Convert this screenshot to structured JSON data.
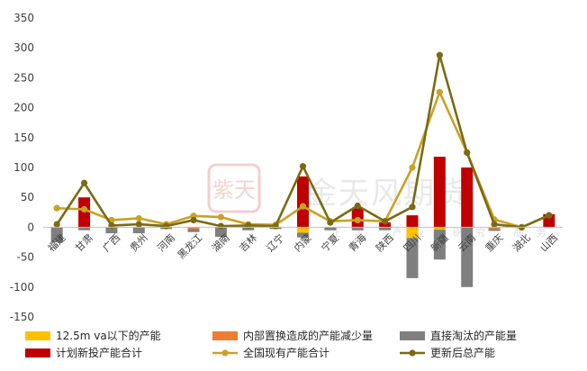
{
  "watermark": {
    "main": "金天风期货",
    "sub": "正定 产业 研究 服务",
    "seal": "紫天"
  },
  "chart_data": {
    "type": "bar",
    "title": "",
    "xlabel": "",
    "ylabel": "",
    "ylim": [
      -150,
      350
    ],
    "yticks": [
      350,
      300,
      250,
      200,
      150,
      100,
      50,
      0,
      -50,
      -100,
      -150
    ],
    "categories": [
      "福建",
      "甘肃",
      "广西",
      "贵州",
      "河南",
      "黑龙江",
      "湖南",
      "吉林",
      "辽宁",
      "内蒙",
      "宁夏",
      "青海",
      "陕西",
      "四川",
      "新疆",
      "云南",
      "重庆",
      "湖北",
      "山西"
    ],
    "series": [
      {
        "name": "12.5m va以下的产能",
        "kind": "bar",
        "color": "#FFC000",
        "values": [
          0,
          0,
          0,
          0,
          0,
          0,
          0,
          0,
          0,
          -9,
          0,
          0,
          0,
          -18,
          -4,
          0,
          0,
          0,
          0
        ]
      },
      {
        "name": "内部置换造成的产能减少量",
        "kind": "bar",
        "color": "#ED7D31",
        "values": [
          0,
          0,
          0,
          0,
          0,
          -3,
          0,
          0,
          0,
          0,
          0,
          0,
          0,
          0,
          0,
          0,
          -3,
          0,
          0
        ]
      },
      {
        "name": "直接淘汰的产能量",
        "kind": "bar",
        "color": "#7F7F7F",
        "values": [
          -25,
          -5,
          -10,
          -10,
          -3,
          -5,
          -16,
          -5,
          -3,
          -8,
          -5,
          -5,
          -5,
          -67,
          -50,
          -100,
          -3,
          0,
          0
        ]
      },
      {
        "name": "计划新投产能合计",
        "kind": "bar",
        "color": "#C00000",
        "values": [
          0,
          50,
          0,
          0,
          0,
          0,
          0,
          0,
          0,
          85,
          0,
          32,
          8,
          20,
          118,
          100,
          0,
          0,
          22
        ]
      },
      {
        "name": "全国现有产能合计",
        "kind": "line",
        "color": "#C9A227",
        "values": [
          32,
          30,
          12,
          15,
          5,
          19,
          17,
          5,
          4,
          35,
          10,
          12,
          10,
          100,
          226,
          125,
          13,
          0,
          20
        ]
      },
      {
        "name": "更新后总产能",
        "kind": "line",
        "color": "#7B6A14",
        "values": [
          5,
          74,
          3,
          5,
          2,
          12,
          2,
          3,
          2,
          102,
          8,
          36,
          10,
          34,
          288,
          125,
          5,
          0,
          20
        ]
      }
    ],
    "legend_position": "bottom",
    "grid": false
  }
}
